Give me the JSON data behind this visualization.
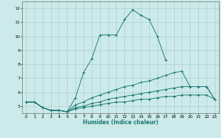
{
  "title": "",
  "xlabel": "Humidex (Indice chaleur)",
  "background_color": "#cceaea",
  "grid_color": "#aacccc",
  "line_color": "#1a7870",
  "xlim": [
    -0.5,
    23.5
  ],
  "ylim": [
    4.5,
    12.5
  ],
  "x_ticks": [
    0,
    1,
    2,
    3,
    4,
    5,
    6,
    7,
    8,
    9,
    10,
    11,
    12,
    13,
    14,
    15,
    16,
    17,
    18,
    19,
    20,
    21,
    22,
    23
  ],
  "y_ticks": [
    5,
    6,
    7,
    8,
    9,
    10,
    11,
    12
  ],
  "series": [
    {
      "x": [
        0,
        1,
        2,
        3,
        4,
        5,
        6,
        7,
        8,
        9,
        10,
        11,
        12,
        13,
        14,
        15,
        16,
        17
      ],
      "y": [
        5.3,
        5.3,
        4.9,
        4.7,
        4.7,
        4.6,
        5.6,
        7.4,
        8.4,
        10.1,
        10.1,
        10.1,
        11.2,
        11.9,
        11.5,
        11.2,
        10.0,
        8.3
      ]
    },
    {
      "x": [
        0,
        1,
        2,
        3,
        4,
        5,
        6,
        7,
        8,
        9,
        10,
        11,
        12,
        13,
        14,
        15,
        16,
        17,
        18,
        19,
        20,
        21,
        22,
        23
      ],
      "y": [
        5.3,
        5.3,
        4.9,
        4.7,
        4.7,
        4.6,
        5.1,
        5.3,
        5.6,
        5.8,
        6.0,
        6.2,
        6.4,
        6.5,
        6.7,
        6.8,
        7.0,
        7.2,
        7.4,
        7.5,
        6.4,
        6.4,
        6.4,
        5.5
      ]
    },
    {
      "x": [
        0,
        1,
        2,
        3,
        4,
        5,
        6,
        7,
        8,
        9,
        10,
        11,
        12,
        13,
        14,
        15,
        16,
        17,
        18,
        19,
        20,
        21,
        22,
        23
      ],
      "y": [
        5.3,
        5.3,
        4.9,
        4.7,
        4.7,
        4.6,
        4.9,
        5.0,
        5.2,
        5.3,
        5.5,
        5.6,
        5.7,
        5.8,
        5.9,
        6.0,
        6.1,
        6.2,
        6.3,
        6.4,
        6.4,
        6.4,
        6.4,
        5.5
      ]
    },
    {
      "x": [
        0,
        1,
        2,
        3,
        4,
        5,
        6,
        7,
        8,
        9,
        10,
        11,
        12,
        13,
        14,
        15,
        16,
        17,
        18,
        19,
        20,
        21,
        22,
        23
      ],
      "y": [
        5.3,
        5.3,
        4.9,
        4.7,
        4.7,
        4.6,
        4.8,
        4.9,
        5.0,
        5.1,
        5.2,
        5.3,
        5.3,
        5.4,
        5.5,
        5.5,
        5.6,
        5.7,
        5.7,
        5.8,
        5.8,
        5.8,
        5.8,
        5.5
      ]
    }
  ]
}
